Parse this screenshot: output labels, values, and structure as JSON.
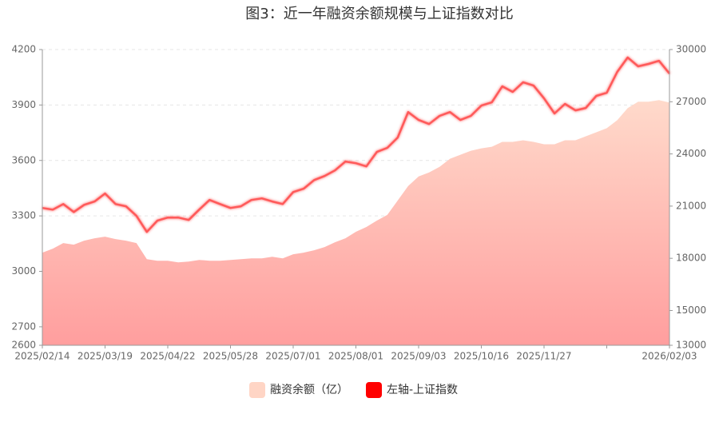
{
  "chart_data": {
    "type": "line",
    "title": "图3：近一年融资余额规模与上证指数对比",
    "categories": [
      "2025/02/14",
      null,
      null,
      null,
      null,
      null,
      "2025/03/19",
      null,
      null,
      null,
      null,
      null,
      "2025/04/22",
      null,
      null,
      null,
      null,
      null,
      "2025/05/28",
      null,
      null,
      null,
      null,
      null,
      "2025/07/01",
      null,
      null,
      null,
      null,
      null,
      "2025/08/01",
      null,
      null,
      null,
      null,
      null,
      "2025/09/03",
      null,
      null,
      null,
      null,
      null,
      "2025/10/16",
      null,
      null,
      null,
      null,
      null,
      "2025/11/27",
      null,
      null,
      null,
      null,
      null,
      null,
      null,
      null,
      null,
      null,
      null,
      "2026/02/03"
    ],
    "series": [
      {
        "name": "融资余额（亿）",
        "type": "area",
        "axis": "y2",
        "color": "#ffd5c5",
        "values": [
          18324,
          18554,
          18877,
          18785,
          19015,
          19154,
          19246,
          19108,
          19015,
          18877,
          17954,
          17862,
          17862,
          17770,
          17816,
          17908,
          17862,
          17862,
          17908,
          17954,
          18000,
          18000,
          18092,
          18000,
          18231,
          18323,
          18462,
          18646,
          18923,
          19154,
          19523,
          19800,
          20169,
          20492,
          21323,
          22154,
          22708,
          22938,
          23262,
          23723,
          23954,
          24185,
          24323,
          24415,
          24692,
          24692,
          24785,
          24692,
          24554,
          24554,
          24785,
          24785,
          25015,
          25246,
          25477,
          25938,
          26631,
          27000,
          27000,
          27092,
          26954
        ]
      },
      {
        "name": "左轴-上证指数",
        "type": "line",
        "axis": "y",
        "color": "#ff0000",
        "values": [
          3343,
          3334,
          3364,
          3321,
          3360,
          3378,
          3421,
          3364,
          3352,
          3300,
          3213,
          3274,
          3291,
          3291,
          3278,
          3334,
          3386,
          3364,
          3343,
          3352,
          3386,
          3395,
          3378,
          3364,
          3429,
          3447,
          3494,
          3516,
          3546,
          3594,
          3585,
          3568,
          3646,
          3668,
          3724,
          3862,
          3819,
          3797,
          3841,
          3862,
          3819,
          3841,
          3897,
          3914,
          4001,
          3971,
          4023,
          4005,
          3936,
          3854,
          3906,
          3871,
          3884,
          3949,
          3966,
          4079,
          4157,
          4109,
          4122,
          4139,
          4070
        ]
      }
    ],
    "ylim": [
      2600,
      4200
    ],
    "yticks": [
      2600,
      2700,
      3000,
      3300,
      3600,
      3900,
      4200
    ],
    "y2lim": [
      13000,
      30000
    ],
    "y2ticks": [
      13000,
      15000,
      18000,
      21000,
      24000,
      27000,
      30000
    ],
    "grid": true,
    "legend": "bottom"
  }
}
